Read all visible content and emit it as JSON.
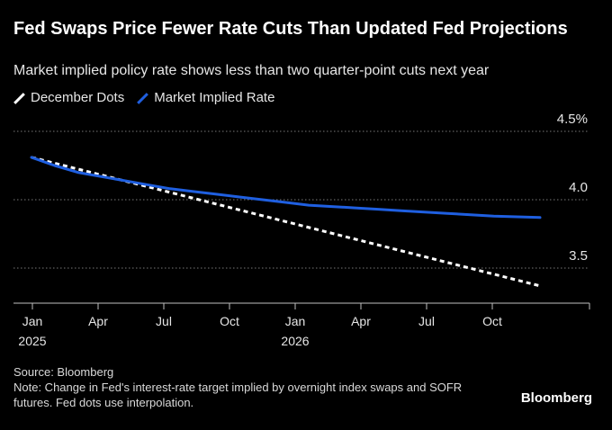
{
  "header": {
    "title": "Fed Swaps Price Fewer Rate Cuts Than Updated Fed Projections",
    "subtitle": "Market implied policy rate shows less than two quarter-point cuts next year"
  },
  "footer": {
    "source": "Source: Bloomberg",
    "note": "Note: Change in Fed's interest-rate target implied by overnight index swaps and SOFR futures. Fed dots use interpolation."
  },
  "brand": "Bloomberg",
  "colors": {
    "dots": "#ffffff",
    "market": "#1f5fe0",
    "grid": "#777777"
  },
  "chart_data": {
    "type": "line",
    "title": "Fed Swaps Price Fewer Rate Cuts Than Updated Fed Projections",
    "xlabel": "",
    "ylabel": "",
    "ylim": [
      3.25,
      4.5
    ],
    "xlim": [
      0,
      24
    ],
    "y_ticks": [
      {
        "value": 4.5,
        "label": "4.5%"
      },
      {
        "value": 4.0,
        "label": "4.0"
      },
      {
        "value": 3.5,
        "label": "3.5"
      }
    ],
    "x_ticks": [
      {
        "value": 0,
        "label": "Jan",
        "sub": "2025"
      },
      {
        "value": 3,
        "label": "Apr",
        "sub": ""
      },
      {
        "value": 6,
        "label": "Jul",
        "sub": ""
      },
      {
        "value": 9,
        "label": "Oct",
        "sub": ""
      },
      {
        "value": 12,
        "label": "Jan",
        "sub": "2026"
      },
      {
        "value": 15,
        "label": "Apr",
        "sub": ""
      },
      {
        "value": 18,
        "label": "Jul",
        "sub": ""
      },
      {
        "value": 21,
        "label": "Oct",
        "sub": ""
      }
    ],
    "series": [
      {
        "name": "December Dots",
        "style": "dashed",
        "color": "#ffffff",
        "x": [
          0,
          22
        ],
        "values": [
          4.31,
          3.37
        ]
      },
      {
        "name": "Market Implied Rate",
        "style": "solid",
        "color": "#1f5fe0",
        "x": [
          0,
          1,
          2,
          3,
          4,
          5,
          6,
          7,
          8,
          9,
          10,
          11,
          12,
          13,
          14,
          15,
          16,
          17,
          18,
          19,
          20,
          21,
          22
        ],
        "values": [
          4.31,
          4.25,
          4.2,
          4.17,
          4.14,
          4.11,
          4.08,
          4.06,
          4.04,
          4.02,
          4.0,
          3.98,
          3.96,
          3.95,
          3.94,
          3.93,
          3.92,
          3.91,
          3.9,
          3.89,
          3.88,
          3.875,
          3.87
        ]
      }
    ]
  }
}
